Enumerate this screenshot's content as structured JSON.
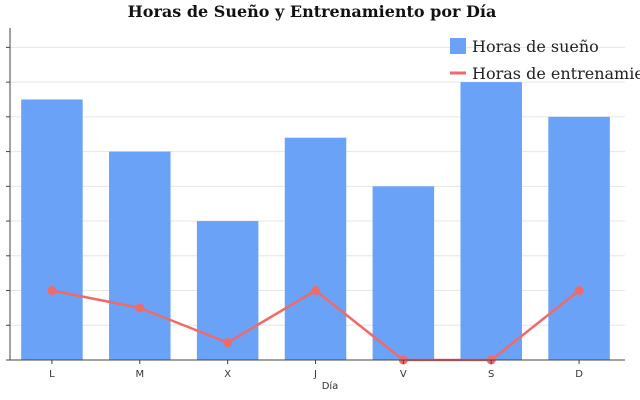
{
  "chart_data": {
    "type": "bar+line",
    "title": "Horas de Sueño y Entrenamiento por Día",
    "xlabel": "Día",
    "ylabel": "",
    "categories": [
      "L",
      "M",
      "X",
      "J",
      "V",
      "S",
      "D"
    ],
    "ylim": [
      0,
      9.5
    ],
    "y_ticks": [
      0,
      1,
      2,
      3,
      4,
      5,
      6,
      7,
      8,
      9
    ],
    "y_tick_labels_visible": false,
    "grid": true,
    "legend_position": "top-right",
    "series": [
      {
        "name": "Horas de sueño",
        "type": "bar",
        "color": "#6aa2f8",
        "values": [
          7.5,
          6,
          4,
          6.4,
          5,
          8,
          7
        ]
      },
      {
        "name": "Horas de entrenamiento",
        "type": "line",
        "color": "#ef6b6b",
        "values": [
          2,
          1.5,
          0.5,
          2,
          0,
          0,
          2
        ]
      }
    ]
  }
}
